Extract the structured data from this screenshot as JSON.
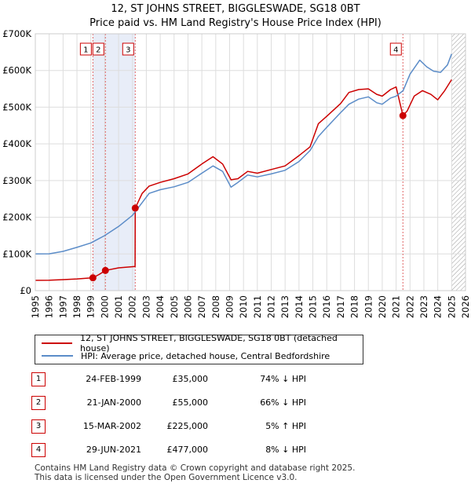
{
  "chart_data": {
    "type": "line",
    "title": "12, ST JOHNS STREET, BIGGLESWADE, SG18 0BT",
    "subtitle": "Price paid vs. HM Land Registry's House Price Index (HPI)",
    "xlim": [
      1995,
      2026
    ],
    "ylim": [
      0,
      700000
    ],
    "x_ticks": [
      "1995",
      "1996",
      "1997",
      "1998",
      "1999",
      "2000",
      "2001",
      "2002",
      "2003",
      "2004",
      "2005",
      "2006",
      "2007",
      "2008",
      "2009",
      "2010",
      "2011",
      "2012",
      "2013",
      "2014",
      "2015",
      "2016",
      "2017",
      "2018",
      "2019",
      "2020",
      "2021",
      "2022",
      "2023",
      "2024",
      "2025",
      "2026"
    ],
    "y_ticks": [
      {
        "value": 0,
        "label": "£0"
      },
      {
        "value": 100000,
        "label": "£100K"
      },
      {
        "value": 200000,
        "label": "£200K"
      },
      {
        "value": 300000,
        "label": "£300K"
      },
      {
        "value": 400000,
        "label": "£400K"
      },
      {
        "value": 500000,
        "label": "£500K"
      },
      {
        "value": 600000,
        "label": "£600K"
      },
      {
        "value": 700000,
        "label": "£700K"
      }
    ],
    "grid": true,
    "shaded_region": [
      1999.15,
      2002.2
    ],
    "future_hatch_from": 2025.0,
    "series": [
      {
        "name": "12, ST JOHNS STREET, BIGGLESWADE, SG18 0BT (detached house)",
        "color": "#cc0000",
        "points": [
          [
            1995.0,
            28000
          ],
          [
            1996.0,
            28500
          ],
          [
            1997.0,
            30000
          ],
          [
            1998.0,
            32000
          ],
          [
            1999.15,
            35000
          ],
          [
            1999.6,
            44000
          ],
          [
            2000.05,
            55000
          ],
          [
            2001.0,
            62000
          ],
          [
            2002.19,
            66000
          ],
          [
            2002.2,
            225000
          ],
          [
            2002.7,
            265000
          ],
          [
            2003.2,
            285000
          ],
          [
            2004.0,
            295000
          ],
          [
            2005.0,
            305000
          ],
          [
            2006.0,
            318000
          ],
          [
            2007.0,
            345000
          ],
          [
            2007.8,
            365000
          ],
          [
            2008.5,
            345000
          ],
          [
            2009.1,
            302000
          ],
          [
            2009.6,
            305000
          ],
          [
            2010.3,
            325000
          ],
          [
            2011.0,
            320000
          ],
          [
            2012.0,
            330000
          ],
          [
            2013.0,
            340000
          ],
          [
            2014.0,
            368000
          ],
          [
            2014.8,
            392000
          ],
          [
            2015.4,
            455000
          ],
          [
            2016.0,
            475000
          ],
          [
            2017.0,
            510000
          ],
          [
            2017.6,
            540000
          ],
          [
            2018.3,
            548000
          ],
          [
            2019.0,
            550000
          ],
          [
            2019.6,
            535000
          ],
          [
            2020.0,
            530000
          ],
          [
            2020.6,
            548000
          ],
          [
            2021.0,
            555000
          ],
          [
            2021.49,
            477000
          ],
          [
            2021.8,
            490000
          ],
          [
            2022.3,
            530000
          ],
          [
            2022.9,
            545000
          ],
          [
            2023.5,
            535000
          ],
          [
            2024.0,
            520000
          ],
          [
            2024.5,
            545000
          ],
          [
            2025.0,
            575000
          ]
        ]
      },
      {
        "name": "HPI: Average price, detached house, Central Bedfordshire",
        "color": "#5b8cc8",
        "points": [
          [
            1995.0,
            100000
          ],
          [
            1996.0,
            100500
          ],
          [
            1997.0,
            107000
          ],
          [
            1998.0,
            118000
          ],
          [
            1999.0,
            130000
          ],
          [
            2000.0,
            150000
          ],
          [
            2001.0,
            175000
          ],
          [
            2002.0,
            205000
          ],
          [
            2002.7,
            240000
          ],
          [
            2003.2,
            265000
          ],
          [
            2004.0,
            275000
          ],
          [
            2005.0,
            283000
          ],
          [
            2006.0,
            295000
          ],
          [
            2007.0,
            320000
          ],
          [
            2007.8,
            340000
          ],
          [
            2008.5,
            325000
          ],
          [
            2009.1,
            282000
          ],
          [
            2009.6,
            295000
          ],
          [
            2010.3,
            315000
          ],
          [
            2011.0,
            310000
          ],
          [
            2012.0,
            318000
          ],
          [
            2013.0,
            328000
          ],
          [
            2014.0,
            352000
          ],
          [
            2014.8,
            382000
          ],
          [
            2015.4,
            420000
          ],
          [
            2016.0,
            445000
          ],
          [
            2017.0,
            485000
          ],
          [
            2017.6,
            508000
          ],
          [
            2018.3,
            522000
          ],
          [
            2019.0,
            528000
          ],
          [
            2019.6,
            512000
          ],
          [
            2020.0,
            508000
          ],
          [
            2020.6,
            525000
          ],
          [
            2021.0,
            530000
          ],
          [
            2021.5,
            545000
          ],
          [
            2022.0,
            590000
          ],
          [
            2022.7,
            628000
          ],
          [
            2023.2,
            610000
          ],
          [
            2023.7,
            598000
          ],
          [
            2024.2,
            595000
          ],
          [
            2024.7,
            615000
          ],
          [
            2025.0,
            645000
          ]
        ]
      }
    ],
    "sales": [
      {
        "num": "1",
        "year": 1999.15,
        "price": 35000
      },
      {
        "num": "2",
        "year": 2000.05,
        "price": 55000
      },
      {
        "num": "3",
        "year": 2002.2,
        "price": 225000
      },
      {
        "num": "4",
        "year": 2021.49,
        "price": 477000
      }
    ]
  },
  "legend": {
    "property_label": "12, ST JOHNS STREET, BIGGLESWADE, SG18 0BT (detached house)",
    "hpi_label": "HPI: Average price, detached house, Central Bedfordshire"
  },
  "sales_table": [
    {
      "num": "1",
      "date": "24-FEB-1999",
      "price": "£35,000",
      "hpi": "74% ↓ HPI"
    },
    {
      "num": "2",
      "date": "21-JAN-2000",
      "price": "£55,000",
      "hpi": "66% ↓ HPI"
    },
    {
      "num": "3",
      "date": "15-MAR-2002",
      "price": "£225,000",
      "hpi": "5% ↑ HPI"
    },
    {
      "num": "4",
      "date": "29-JUN-2021",
      "price": "£477,000",
      "hpi": "8% ↓ HPI"
    }
  ],
  "footer": {
    "line1": "Contains HM Land Registry data © Crown copyright and database right 2025.",
    "line2": "This data is licensed under the Open Government Licence v3.0."
  }
}
